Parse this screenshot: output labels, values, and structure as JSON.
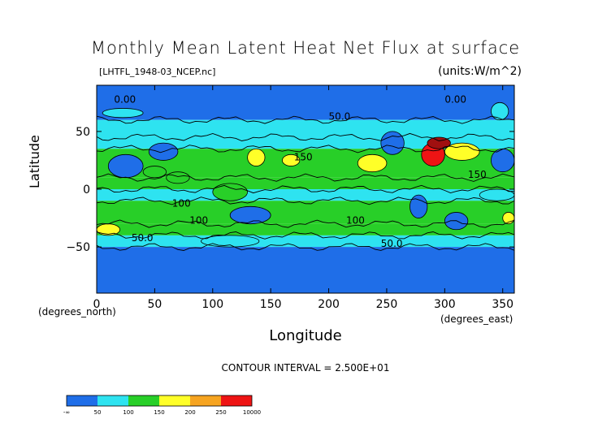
{
  "chart_data": {
    "type": "heatmap",
    "title": "Monthly Mean Latent Heat Net Flux at surface",
    "subtitle": "[LHTFL_1948-03_NCEP.nc]",
    "units": "(units:W/m^2)",
    "xlabel": "Longitude",
    "ylabel": "Latitude",
    "x_note": "(degrees_east)",
    "y_note": "(degrees_north)",
    "xlim": [
      0,
      360
    ],
    "ylim": [
      -90,
      90
    ],
    "x_ticks": [
      "0",
      "50",
      "100",
      "150",
      "200",
      "250",
      "300",
      "350"
    ],
    "x_tick_values": [
      0,
      50,
      100,
      150,
      200,
      250,
      300,
      350
    ],
    "y_ticks": [
      "50",
      "0",
      "−50"
    ],
    "y_tick_values": [
      50,
      0,
      -50
    ],
    "contour_interval": "CONTOUR INTERVAL = 2.500E+01",
    "contour_labels": [
      {
        "text": "0.00",
        "x": 15,
        "y": 75
      },
      {
        "text": "0.00",
        "x": 300,
        "y": 75
      },
      {
        "text": "50.0",
        "x": 200,
        "y": 60
      },
      {
        "text": "150",
        "x": 170,
        "y": 25
      },
      {
        "text": "150",
        "x": 320,
        "y": 10
      },
      {
        "text": "100",
        "x": 65,
        "y": -15
      },
      {
        "text": "100",
        "x": 80,
        "y": -30
      },
      {
        "text": "100",
        "x": 215,
        "y": -30
      },
      {
        "text": "50.0",
        "x": 245,
        "y": -50
      },
      {
        "text": "50.0",
        "x": 30,
        "y": -45
      }
    ],
    "colorbar": {
      "levels": [
        "-∞",
        "50",
        "100",
        "150",
        "200",
        "250",
        "10000"
      ],
      "colors": [
        "#1f6ee8",
        "#1f6ee8",
        "#2ee3f0",
        "#2ee3f0",
        "#28cf28",
        "#28cf28",
        "#ffff28",
        "#ffff28",
        "#f6a420",
        "#f6a420",
        "#ee1414",
        "#ee1414"
      ]
    },
    "bands": [
      {
        "lat_from": 90,
        "lat_to": 60,
        "value": 25
      },
      {
        "lat_from": 60,
        "lat_to": 45,
        "value": 50
      },
      {
        "lat_from": 45,
        "lat_to": 35,
        "value": 75
      },
      {
        "lat_from": 35,
        "lat_to": 10,
        "value": 125
      },
      {
        "lat_from": 10,
        "lat_to": 0,
        "value": 100
      },
      {
        "lat_from": 0,
        "lat_to": -10,
        "value": 75
      },
      {
        "lat_from": -10,
        "lat_to": -30,
        "value": 125
      },
      {
        "lat_from": -30,
        "lat_to": -40,
        "value": 100
      },
      {
        "lat_from": -40,
        "lat_to": -50,
        "value": 50
      },
      {
        "lat_from": -50,
        "lat_to": -90,
        "value": 25
      }
    ],
    "features": [
      {
        "lon_from": 280,
        "lon_to": 300,
        "lat_from": 40,
        "lat_to": 20,
        "value": 250
      },
      {
        "lon_from": 285,
        "lon_to": 305,
        "lat_from": 45,
        "lat_to": 35,
        "value": 300
      },
      {
        "lon_from": 300,
        "lon_to": 330,
        "lat_from": 40,
        "lat_to": 25,
        "value": 175
      },
      {
        "lon_from": 225,
        "lon_to": 250,
        "lat_from": 30,
        "lat_to": 15,
        "value": 175
      },
      {
        "lon_from": 130,
        "lon_to": 145,
        "lat_from": 35,
        "lat_to": 20,
        "value": 175
      },
      {
        "lon_from": 160,
        "lon_to": 175,
        "lat_from": 30,
        "lat_to": 20,
        "value": 175
      },
      {
        "lon_from": 60,
        "lon_to": 80,
        "lat_from": 15,
        "lat_to": 5,
        "value": 125
      },
      {
        "lon_from": 40,
        "lon_to": 60,
        "lat_from": 20,
        "lat_to": 10,
        "value": 125
      },
      {
        "lon_from": 0,
        "lon_to": 20,
        "lat_from": -30,
        "lat_to": -40,
        "value": 175
      },
      {
        "lon_from": 350,
        "lon_to": 360,
        "lat_from": -20,
        "lat_to": -30,
        "value": 175
      },
      {
        "lon_from": 90,
        "lon_to": 140,
        "lat_from": -40,
        "lat_to": -50,
        "value": 75
      },
      {
        "lon_from": 100,
        "lon_to": 130,
        "lat_from": 5,
        "lat_to": -10,
        "value": 125
      },
      {
        "lon_from": 270,
        "lon_to": 285,
        "lat_from": -5,
        "lat_to": -25,
        "value": 25
      },
      {
        "lon_from": 330,
        "lon_to": 360,
        "lat_from": 0,
        "lat_to": -10,
        "value": 75
      },
      {
        "lon_from": 10,
        "lon_to": 40,
        "lat_from": 30,
        "lat_to": 10,
        "value": 25
      },
      {
        "lon_from": 340,
        "lon_to": 360,
        "lat_from": 35,
        "lat_to": 15,
        "value": 25
      },
      {
        "lon_from": 45,
        "lon_to": 70,
        "lat_from": 40,
        "lat_to": 25,
        "value": 25
      },
      {
        "lon_from": 115,
        "lon_to": 150,
        "lat_from": -15,
        "lat_to": -30,
        "value": 25
      },
      {
        "lon_from": 245,
        "lon_to": 265,
        "lat_from": 50,
        "lat_to": 30,
        "value": 25
      },
      {
        "lon_from": 300,
        "lon_to": 320,
        "lat_from": -20,
        "lat_to": -35,
        "value": 25
      },
      {
        "lon_from": 340,
        "lon_to": 355,
        "lat_from": 75,
        "lat_to": 60,
        "value": 75
      },
      {
        "lon_from": 5,
        "lon_to": 40,
        "lat_from": 70,
        "lat_to": 62,
        "value": 75
      }
    ]
  }
}
